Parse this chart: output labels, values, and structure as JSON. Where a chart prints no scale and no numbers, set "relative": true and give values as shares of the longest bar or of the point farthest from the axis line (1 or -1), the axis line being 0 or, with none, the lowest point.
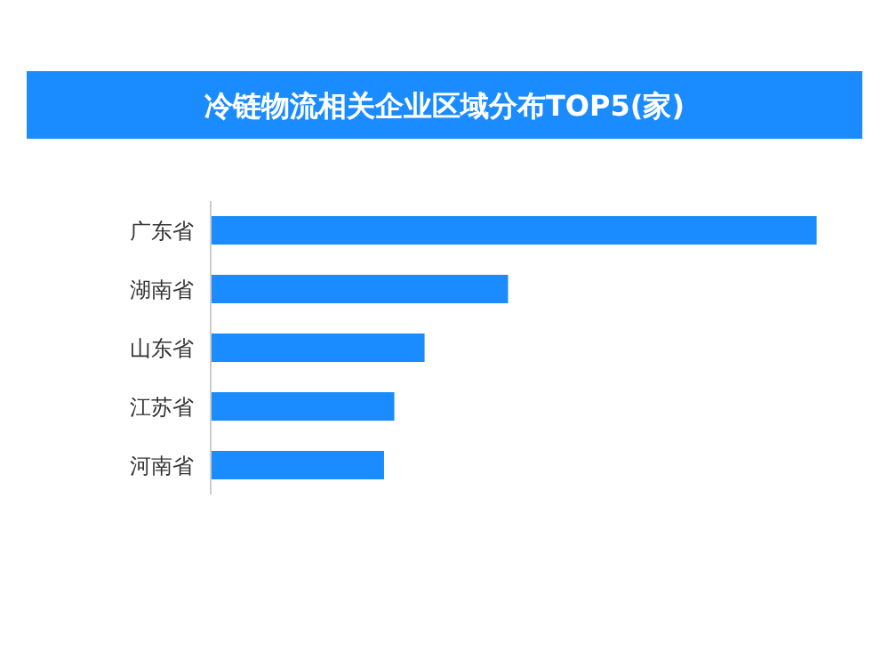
{
  "chart_data": {
    "type": "bar",
    "orientation": "horizontal",
    "relative": true,
    "title": "冷链物流相关企业区域分布TOP5(家)",
    "categories": [
      "广东省",
      "湖南省",
      "山东省",
      "江苏省",
      "河南省"
    ],
    "values": [
      1,
      0.49,
      0.352,
      0.302,
      0.285
    ],
    "color": "#1a8cff"
  }
}
